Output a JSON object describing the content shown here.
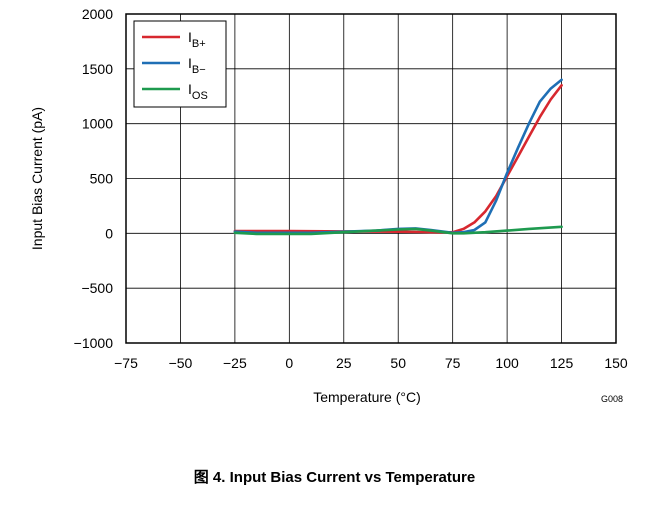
{
  "figure_id": "G008",
  "caption": "图 4. Input Bias Current vs Temperature",
  "chart_data": {
    "type": "line",
    "xlabel": "Temperature (°C)",
    "ylabel": "Input Bias Current (pA)",
    "xlim": [
      -75,
      150
    ],
    "ylim": [
      -1000,
      2000
    ],
    "xticks": [
      "−75",
      "−50",
      "−25",
      "0",
      "25",
      "50",
      "75",
      "100",
      "125",
      "150"
    ],
    "xtick_values": [
      -75,
      -50,
      -25,
      0,
      25,
      50,
      75,
      100,
      125,
      150
    ],
    "yticks": [
      "2000",
      "1500",
      "1000",
      "500",
      "0",
      "−500",
      "−1000"
    ],
    "ytick_values": [
      2000,
      1500,
      1000,
      500,
      0,
      -500,
      -1000
    ],
    "grid": true,
    "legend_position": "top-left",
    "series": [
      {
        "name_main": "I",
        "name_sub": "B+",
        "color": "#d7282f",
        "x": [
          -25,
          0,
          25,
          50,
          60,
          70,
          75,
          80,
          85,
          90,
          95,
          100,
          105,
          110,
          115,
          120,
          125
        ],
        "y": [
          20,
          20,
          18,
          15,
          12,
          8,
          10,
          40,
          100,
          200,
          340,
          520,
          700,
          880,
          1060,
          1220,
          1350
        ]
      },
      {
        "name_main": "I",
        "name_sub": "B−",
        "color": "#1f6fb5",
        "x": [
          -25,
          -15,
          0,
          10,
          25,
          40,
          50,
          58,
          65,
          75,
          80,
          85,
          90,
          95,
          100,
          105,
          110,
          115,
          120,
          125
        ],
        "y": [
          15,
          5,
          5,
          5,
          15,
          25,
          40,
          45,
          30,
          5,
          10,
          30,
          100,
          300,
          550,
          780,
          1000,
          1200,
          1320,
          1400
        ]
      },
      {
        "name_main": "I",
        "name_sub": "OS",
        "color": "#1e9a4f",
        "x": [
          -25,
          -15,
          0,
          10,
          25,
          40,
          50,
          58,
          65,
          75,
          80,
          90,
          100,
          110,
          125
        ],
        "y": [
          5,
          -5,
          -5,
          -5,
          10,
          25,
          35,
          40,
          25,
          0,
          0,
          10,
          25,
          40,
          60
        ]
      }
    ]
  }
}
